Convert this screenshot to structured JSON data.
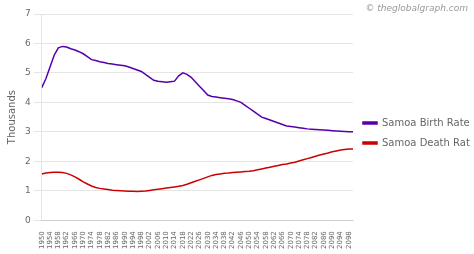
{
  "chart_data": {
    "type": "line",
    "ylabel": "Thousands",
    "annotations": [
      "© theglobalgraph.com"
    ],
    "x": [
      1950,
      1952,
      1954,
      1956,
      1958,
      1960,
      1962,
      1964,
      1966,
      1968,
      1970,
      1972,
      1974,
      1976,
      1978,
      1980,
      1982,
      1984,
      1986,
      1988,
      1990,
      1992,
      1994,
      1996,
      1998,
      2000,
      2002,
      2004,
      2006,
      2008,
      2010,
      2012,
      2014,
      2016,
      2018,
      2020,
      2022,
      2024,
      2026,
      2028,
      2030,
      2032,
      2034,
      2036,
      2038,
      2040,
      2042,
      2044,
      2046,
      2048,
      2050,
      2052,
      2054,
      2056,
      2058,
      2060,
      2062,
      2064,
      2066,
      2068,
      2070,
      2072,
      2074,
      2076,
      2078,
      2080,
      2082,
      2084,
      2086,
      2088,
      2090,
      2092,
      2094,
      2096,
      2098,
      2100
    ],
    "series": [
      {
        "name": "Samoa Birth Rate",
        "color": "#5500aa",
        "values": [
          4.5,
          4.8,
          5.2,
          5.6,
          5.85,
          5.9,
          5.88,
          5.82,
          5.78,
          5.72,
          5.65,
          5.55,
          5.45,
          5.42,
          5.38,
          5.35,
          5.32,
          5.3,
          5.28,
          5.26,
          5.24,
          5.2,
          5.15,
          5.1,
          5.05,
          4.95,
          4.85,
          4.75,
          4.72,
          4.7,
          4.68,
          4.7,
          4.72,
          4.9,
          5.0,
          4.95,
          4.85,
          4.7,
          4.55,
          4.4,
          4.25,
          4.2,
          4.18,
          4.16,
          4.14,
          4.12,
          4.1,
          4.05,
          4.0,
          3.9,
          3.8,
          3.7,
          3.6,
          3.5,
          3.45,
          3.4,
          3.35,
          3.3,
          3.25,
          3.2,
          3.18,
          3.16,
          3.14,
          3.12,
          3.1,
          3.09,
          3.08,
          3.07,
          3.06,
          3.05,
          3.04,
          3.03,
          3.02,
          3.01,
          3.0,
          3.0
        ]
      },
      {
        "name": "Samoa Death Rate",
        "color": "#cc0000",
        "values": [
          1.57,
          1.6,
          1.62,
          1.63,
          1.63,
          1.62,
          1.59,
          1.54,
          1.47,
          1.39,
          1.3,
          1.23,
          1.16,
          1.11,
          1.08,
          1.06,
          1.04,
          1.02,
          1.01,
          1.0,
          0.99,
          0.98,
          0.98,
          0.97,
          0.98,
          0.99,
          1.01,
          1.03,
          1.05,
          1.07,
          1.09,
          1.11,
          1.13,
          1.15,
          1.18,
          1.22,
          1.27,
          1.32,
          1.37,
          1.42,
          1.47,
          1.52,
          1.55,
          1.57,
          1.59,
          1.6,
          1.62,
          1.63,
          1.64,
          1.65,
          1.66,
          1.68,
          1.71,
          1.74,
          1.77,
          1.8,
          1.83,
          1.86,
          1.89,
          1.91,
          1.94,
          1.97,
          2.01,
          2.05,
          2.09,
          2.13,
          2.17,
          2.21,
          2.25,
          2.28,
          2.32,
          2.35,
          2.38,
          2.4,
          2.42,
          2.42
        ]
      }
    ],
    "xlim": [
      1950,
      2100
    ],
    "xticks": [
      1950,
      1954,
      1958,
      1962,
      1966,
      1970,
      1974,
      1978,
      1982,
      1986,
      1990,
      1994,
      1998,
      2002,
      2006,
      2010,
      2014,
      2018,
      2022,
      2026,
      2030,
      2034,
      2038,
      2042,
      2046,
      2050,
      2054,
      2058,
      2062,
      2066,
      2070,
      2074,
      2078,
      2082,
      2086,
      2090,
      2094,
      2098
    ],
    "ylim": [
      0,
      7
    ],
    "yticks": [
      0,
      1,
      2,
      3,
      4,
      5,
      6,
      7
    ],
    "grid": "y",
    "legend": "right"
  }
}
